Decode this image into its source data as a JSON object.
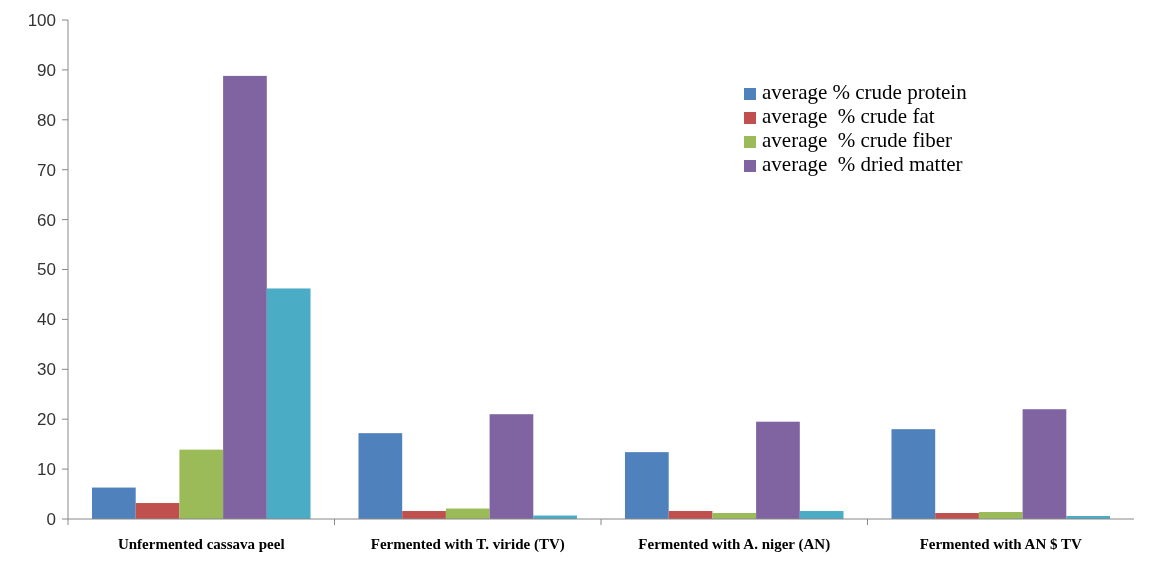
{
  "chart_data": {
    "type": "bar",
    "categories": [
      "Unfermented cassava peel",
      "Fermented with T. viride (TV)",
      "Fermented with A. niger (AN)",
      "Fermented with AN $ TV"
    ],
    "series": [
      {
        "name": "average % crude protein",
        "color": "#4f81bd",
        "values": [
          6.3,
          17.2,
          13.4,
          18
        ]
      },
      {
        "name": "average  % crude fat",
        "color": "#c0504d",
        "values": [
          3.2,
          1.6,
          1.6,
          1.2
        ]
      },
      {
        "name": "average  % crude fiber",
        "color": "#9bbb59",
        "values": [
          13.9,
          2.1,
          1.2,
          1.4
        ]
      },
      {
        "name": "average  % dried matter",
        "color": "#8064a2",
        "values": [
          88.8,
          21,
          19.5,
          22
        ]
      },
      {
        "color": "#4bacc6",
        "values": [
          46.2,
          0.7,
          1.6,
          0.6
        ]
      }
    ],
    "ylim": [
      0,
      100
    ],
    "yticks": [
      0,
      10,
      20,
      30,
      40,
      50,
      60,
      70,
      80,
      90,
      100
    ],
    "legend": "top right",
    "grid": false
  }
}
